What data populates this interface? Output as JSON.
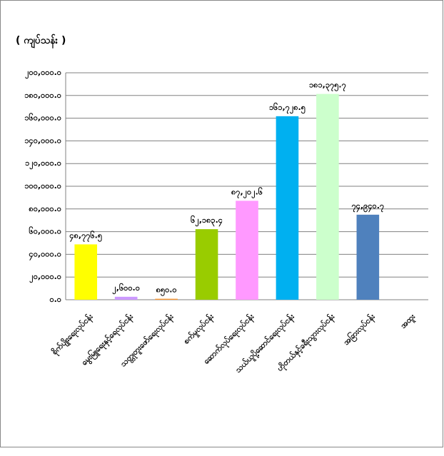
{
  "chart_data": {
    "type": "bar",
    "title": "( ကျပ်သန်း )",
    "categories": [
      "စိုက်ပျိုးရေးလုပ်ငန်း",
      "မွေးမြူရေးနှင့်ရေလုပ်ငန်း",
      "သတ္တုတူးဖော်ရေးလုပ်ငန်း",
      "စက်မှုလုပ်ငန်း",
      "ဆောက်လုပ်ရေးလုပ်ငန်း",
      "သယ်ယူပို့ဆောင်ရေးလုပ်ငန်း",
      "ဟိုတယ်နှင့်ခရီးသွားလုပ်ငန်း",
      "အခြားလုပ်ငန်း",
      "အထူး"
    ],
    "values": [
      48776.5,
      2600,
      850,
      62183.4,
      87202.6,
      161728.5,
      181375.7,
      74940.7,
      null
    ],
    "value_labels": [
      "၄၈,၇၇၆.၅",
      "၂,၆၀၀.၀",
      "၈၅၀.၀",
      "၆၂,၁၈၃.၄",
      "၈၇,၂၀၂.၆",
      "၁၆၁,၇၂၈.၅",
      "၁၈၁,၃၇၅.၇",
      "၇၄,၉၄၀.၇",
      null
    ],
    "colors": [
      "#ffff00",
      "#cc99ff",
      "#ff9933",
      "#99cc00",
      "#ff99ff",
      "#00b0f0",
      "#ccffcc",
      "#4f81bd",
      null
    ],
    "ylim": [
      0,
      200000
    ],
    "yticks": [
      {
        "value": 0,
        "label": "၀.၀"
      },
      {
        "value": 20000,
        "label": "၂၀,၀၀၀.၀"
      },
      {
        "value": 40000,
        "label": "၄၀,၀၀၀.၀"
      },
      {
        "value": 60000,
        "label": "၆၀,၀၀၀.၀"
      },
      {
        "value": 80000,
        "label": "၈၀,၀၀၀.၀"
      },
      {
        "value": 100000,
        "label": "၁၀၀,၀၀၀.၀"
      },
      {
        "value": 120000,
        "label": "၁၂၀,၀၀၀.၀"
      },
      {
        "value": 140000,
        "label": "၁၄၀,၀၀၀.၀"
      },
      {
        "value": 160000,
        "label": "၁၆၀,၀၀၀.၀"
      },
      {
        "value": 180000,
        "label": "၁၈၀,၀၀၀.၀"
      },
      {
        "value": 200000,
        "label": "၂၀၀,၀၀၀.၀"
      }
    ],
    "grid": true
  }
}
